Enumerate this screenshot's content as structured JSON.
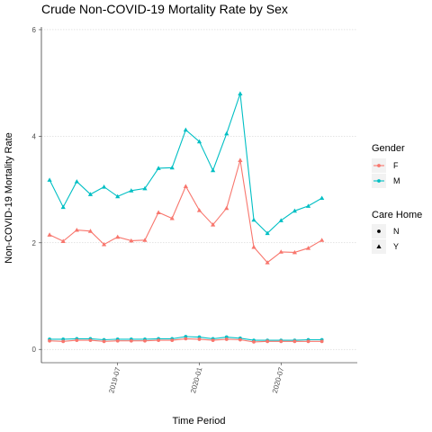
{
  "chart_data": {
    "type": "line",
    "title": "Crude Non-COVID-19 Mortality Rate by Sex",
    "xlabel": "Time Period",
    "ylabel": "Non-COVID-19 Mortality Rate",
    "ylim": [
      -0.25,
      6.05
    ],
    "yticks": [
      0,
      2,
      4,
      6
    ],
    "x_index_range": [
      -0.6,
      22.6
    ],
    "xticks": [
      {
        "label": "2019-07",
        "index": 5
      },
      {
        "label": "2020-01",
        "index": 11
      },
      {
        "label": "2020-07",
        "index": 17
      }
    ],
    "x": [
      0,
      1,
      2,
      3,
      4,
      5,
      6,
      7,
      8,
      9,
      10,
      11,
      12,
      13,
      14,
      15,
      16,
      17,
      18,
      19,
      20,
      21
    ],
    "legend": {
      "gender_title": "Gender",
      "gender_items": [
        {
          "label": "F",
          "color": "#F8766D"
        },
        {
          "label": "M",
          "color": "#00BFC4"
        }
      ],
      "carehome_title": "Care Home",
      "carehome_items": [
        {
          "label": "N",
          "shape": "circle"
        },
        {
          "label": "Y",
          "shape": "triangle"
        }
      ]
    },
    "series": [
      {
        "name": "M - Y",
        "gender": "M",
        "care_home": "Y",
        "color": "#00BFC4",
        "shape": "triangle",
        "values": [
          3.18,
          2.67,
          3.15,
          2.91,
          3.05,
          2.87,
          2.98,
          3.02,
          3.4,
          3.41,
          4.12,
          3.9,
          3.36,
          4.05,
          4.8,
          2.43,
          2.18,
          2.42,
          2.6,
          2.69,
          2.84,
          null
        ]
      },
      {
        "name": "F - Y",
        "gender": "F",
        "care_home": "Y",
        "color": "#F8766D",
        "shape": "triangle",
        "values": [
          2.15,
          2.03,
          2.24,
          2.22,
          1.97,
          2.11,
          2.04,
          2.05,
          2.57,
          2.46,
          3.06,
          2.61,
          2.34,
          2.65,
          3.55,
          1.92,
          1.63,
          1.83,
          1.82,
          1.9,
          2.05,
          null
        ]
      },
      {
        "name": "M - N",
        "gender": "M",
        "care_home": "N",
        "color": "#00BFC4",
        "shape": "circle",
        "values": [
          0.19,
          0.19,
          0.2,
          0.2,
          0.18,
          0.19,
          0.19,
          0.19,
          0.2,
          0.2,
          0.24,
          0.23,
          0.2,
          0.23,
          0.21,
          0.17,
          0.17,
          0.17,
          0.17,
          0.18,
          0.18,
          null
        ]
      },
      {
        "name": "F - N",
        "gender": "F",
        "care_home": "N",
        "color": "#F8766D",
        "shape": "circle",
        "values": [
          0.16,
          0.15,
          0.17,
          0.17,
          0.15,
          0.16,
          0.16,
          0.16,
          0.17,
          0.17,
          0.2,
          0.19,
          0.17,
          0.19,
          0.18,
          0.14,
          0.15,
          0.15,
          0.15,
          0.15,
          0.15,
          null
        ]
      }
    ]
  }
}
